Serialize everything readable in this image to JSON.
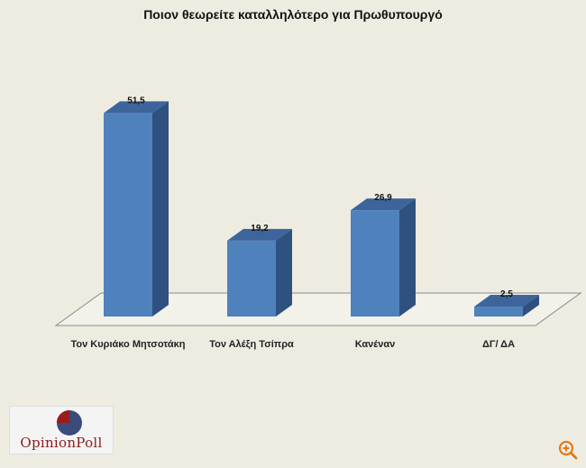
{
  "chart_data": {
    "type": "bar",
    "title": "Ποιον θεωρείτε καταλληλότερο για Πρωθυπουργό",
    "categories": [
      "Τον Κυριάκο Μητσοτάκη",
      "Τον Αλέξη Τσίπρα",
      "Κανέναν",
      "ΔΓ/ ΔΑ"
    ],
    "values": [
      51.5,
      19.2,
      26.9,
      2.5
    ],
    "value_labels": [
      "51,5",
      "19,2",
      "26,9",
      "2,5"
    ],
    "xlabel": "",
    "ylabel": "",
    "ylim": [
      0,
      55
    ],
    "grid": false,
    "bar_color": "#4f81bd",
    "bar_side_color": "#2f5180",
    "bar_top_color": "#3d659b"
  },
  "logo": {
    "text": "OpinionPoll",
    "primary_color": "#8b1a1a",
    "secondary_color": "#3a4a7a"
  },
  "controls": {
    "zoom_icon": "zoom-in-icon"
  }
}
